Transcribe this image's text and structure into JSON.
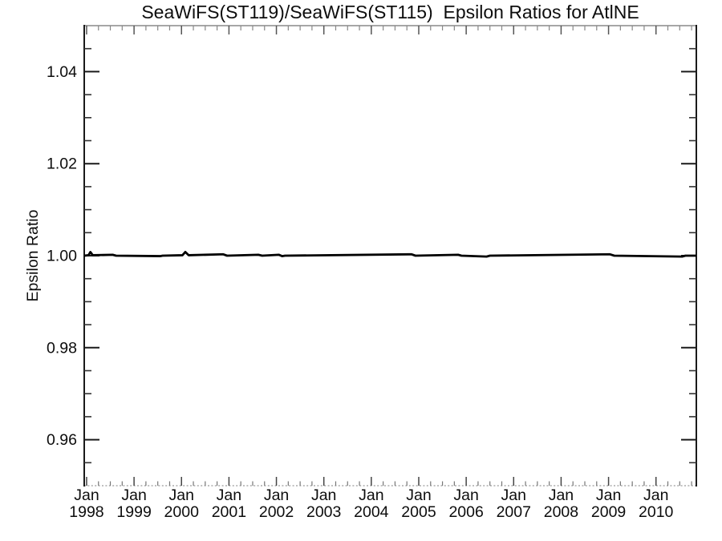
{
  "chart_data": {
    "type": "line",
    "title": "SeaWiFS(ST119)/SeaWiFS(ST115)  Epsilon Ratios for AtlNE",
    "ylabel": "Epsilon Ratio",
    "xlabel": "",
    "xlim": [
      1997.95,
      2010.85
    ],
    "ylim": [
      0.95,
      1.05
    ],
    "grid": false,
    "legend": "none",
    "background": "#ffffff",
    "line_color": "#000000",
    "line_width": 2.8,
    "y_major_ticks": [
      {
        "value": 0.96,
        "label": "0.96"
      },
      {
        "value": 0.98,
        "label": "0.98"
      },
      {
        "value": 1.0,
        "label": "1.00"
      },
      {
        "value": 1.02,
        "label": "1.02"
      },
      {
        "value": 1.04,
        "label": "1.04"
      }
    ],
    "y_minor_step": 0.005,
    "x_major_ticks": [
      {
        "value": 1998,
        "month": "Jan",
        "year": "1998"
      },
      {
        "value": 1999,
        "month": "Jan",
        "year": "1999"
      },
      {
        "value": 2000,
        "month": "Jan",
        "year": "2000"
      },
      {
        "value": 2001,
        "month": "Jan",
        "year": "2001"
      },
      {
        "value": 2002,
        "month": "Jan",
        "year": "2002"
      },
      {
        "value": 2003,
        "month": "Jan",
        "year": "2003"
      },
      {
        "value": 2004,
        "month": "Jan",
        "year": "2004"
      },
      {
        "value": 2005,
        "month": "Jan",
        "year": "2005"
      },
      {
        "value": 2006,
        "month": "Jan",
        "year": "2006"
      },
      {
        "value": 2007,
        "month": "Jan",
        "year": "2007"
      },
      {
        "value": 2008,
        "month": "Jan",
        "year": "2008"
      },
      {
        "value": 2009,
        "month": "Jan",
        "year": "2009"
      },
      {
        "value": 2010,
        "month": "Jan",
        "year": "2010"
      }
    ],
    "x_minor_step": 0.25,
    "series": [
      {
        "name": "SeaWiFS(ST119)/SeaWiFS(ST115) epsilon ratio",
        "points": [
          [
            1997.95,
            1.0
          ],
          [
            1998.04,
            1.0001
          ],
          [
            1998.08,
            1.0008
          ],
          [
            1998.13,
            1.0001
          ],
          [
            1998.55,
            1.0002
          ],
          [
            1998.62,
            1.0
          ],
          [
            1999.55,
            0.9999
          ],
          [
            1999.6,
            1.0
          ],
          [
            2000.02,
            1.0001
          ],
          [
            2000.08,
            1.0008
          ],
          [
            2000.15,
            1.0001
          ],
          [
            2000.88,
            1.0003
          ],
          [
            2000.96,
            1.0
          ],
          [
            2001.62,
            1.0002
          ],
          [
            2001.7,
            1.0
          ],
          [
            2002.05,
            1.0002
          ],
          [
            2002.12,
            0.9999
          ],
          [
            2002.18,
            1.0
          ],
          [
            2004.85,
            1.0003
          ],
          [
            2004.93,
            1.0
          ],
          [
            2005.83,
            1.0002
          ],
          [
            2005.9,
            1.0
          ],
          [
            2006.43,
            0.9998
          ],
          [
            2006.5,
            1.0
          ],
          [
            2009.03,
            1.0003
          ],
          [
            2009.12,
            1.0
          ],
          [
            2010.55,
            0.9998
          ],
          [
            2010.62,
            1.0
          ],
          [
            2010.85,
            1.0
          ]
        ]
      }
    ]
  }
}
